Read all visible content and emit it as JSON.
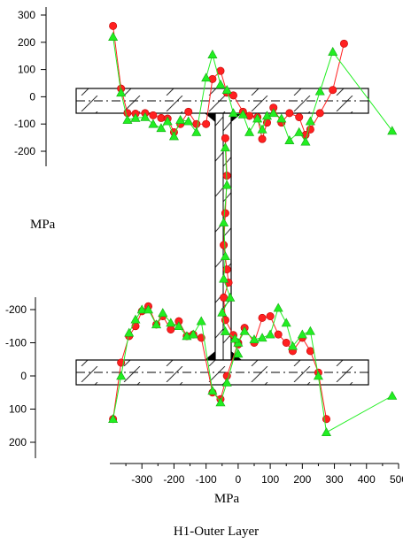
{
  "chart_data": {
    "type": "scatter",
    "title": "H1-Outer Layer",
    "xlabel": "MPa",
    "ylabel": "MPa",
    "x_ticks": [
      "-300",
      "-200",
      "-100",
      "0",
      "100",
      "200",
      "300",
      "400",
      "500"
    ],
    "top_y_ticks": [
      "300",
      "200",
      "100",
      "0",
      "-100",
      "-200"
    ],
    "bottom_y_ticks": [
      "-200",
      "-100",
      "0",
      "100",
      "200"
    ],
    "xlim": [
      -400,
      500
    ],
    "top_ylim": [
      -250,
      320
    ],
    "bottom_ylim": [
      -250,
      240
    ],
    "colors": {
      "red": "#ff2020",
      "green": "#22ee22",
      "hatch": "#333333"
    },
    "series": [
      {
        "marker": "circle",
        "color": "red",
        "top_flange": [
          [
            -390,
            260
          ],
          [
            -365,
            30
          ],
          [
            -345,
            -60
          ],
          [
            -320,
            -62
          ],
          [
            -290,
            -60
          ],
          [
            -265,
            -68
          ],
          [
            -240,
            -78
          ],
          [
            -220,
            -80
          ],
          [
            -200,
            -130
          ],
          [
            -180,
            -100
          ],
          [
            -155,
            -55
          ],
          [
            -130,
            -100
          ],
          [
            -100,
            -100
          ],
          [
            -80,
            65
          ],
          [
            -55,
            95
          ],
          [
            -35,
            15
          ],
          [
            -15,
            5
          ],
          [
            15,
            -55
          ],
          [
            35,
            -70
          ],
          [
            60,
            -75
          ],
          [
            75,
            -155
          ],
          [
            90,
            -95
          ],
          [
            110,
            -40
          ],
          [
            135,
            -95
          ],
          [
            160,
            -60
          ],
          [
            190,
            -75
          ],
          [
            210,
            -140
          ],
          [
            225,
            -120
          ],
          [
            255,
            -60
          ],
          [
            295,
            25
          ],
          [
            330,
            195
          ]
        ],
        "bottom_flange": [
          [
            -390,
            130
          ],
          [
            -365,
            -40
          ],
          [
            -340,
            -120
          ],
          [
            -320,
            -150
          ],
          [
            -300,
            -195
          ],
          [
            -280,
            -210
          ],
          [
            -255,
            -155
          ],
          [
            -235,
            -180
          ],
          [
            -210,
            -140
          ],
          [
            -185,
            -165
          ],
          [
            -160,
            -120
          ],
          [
            -140,
            -125
          ],
          [
            -115,
            -115
          ],
          [
            -80,
            50
          ],
          [
            -55,
            70
          ],
          [
            -35,
            0
          ],
          [
            0,
            -100
          ],
          [
            20,
            -145
          ],
          [
            50,
            -100
          ],
          [
            75,
            -175
          ],
          [
            100,
            -180
          ],
          [
            125,
            -125
          ],
          [
            150,
            -100
          ],
          [
            170,
            -75
          ],
          [
            200,
            -115
          ],
          [
            225,
            -75
          ],
          [
            250,
            -10
          ],
          [
            275,
            130
          ]
        ],
        "web": [
          [
            -40,
            -0.15
          ],
          [
            -35,
            0.05
          ],
          [
            -40,
            0.25
          ],
          [
            -45,
            0.42
          ],
          [
            -35,
            0.55
          ],
          [
            -30,
            0.62
          ],
          [
            -45,
            0.7
          ],
          [
            -40,
            0.82
          ],
          [
            -15,
            0.9
          ],
          [
            0,
            0.95
          ]
        ]
      },
      {
        "marker": "triangle",
        "color": "green",
        "top_flange": [
          [
            -390,
            220
          ],
          [
            -365,
            15
          ],
          [
            -345,
            -85
          ],
          [
            -320,
            -78
          ],
          [
            -290,
            -75
          ],
          [
            -265,
            -100
          ],
          [
            -240,
            -115
          ],
          [
            -220,
            -90
          ],
          [
            -200,
            -145
          ],
          [
            -180,
            -85
          ],
          [
            -155,
            -90
          ],
          [
            -130,
            -130
          ],
          [
            -100,
            70
          ],
          [
            -80,
            155
          ],
          [
            -55,
            45
          ],
          [
            -35,
            25
          ],
          [
            -15,
            -60
          ],
          [
            15,
            -65
          ],
          [
            35,
            -130
          ],
          [
            60,
            -80
          ],
          [
            75,
            -120
          ],
          [
            90,
            -70
          ],
          [
            110,
            -60
          ],
          [
            135,
            -80
          ],
          [
            160,
            -160
          ],
          [
            190,
            -130
          ],
          [
            210,
            -165
          ],
          [
            225,
            -90
          ],
          [
            255,
            20
          ],
          [
            295,
            165
          ],
          [
            480,
            -125
          ]
        ],
        "bottom_flange": [
          [
            -390,
            130
          ],
          [
            -365,
            0
          ],
          [
            -340,
            -130
          ],
          [
            -320,
            -170
          ],
          [
            -300,
            -200
          ],
          [
            -280,
            -200
          ],
          [
            -255,
            -155
          ],
          [
            -235,
            -190
          ],
          [
            -210,
            -160
          ],
          [
            -185,
            -150
          ],
          [
            -160,
            -120
          ],
          [
            -140,
            -125
          ],
          [
            -115,
            -165
          ],
          [
            -80,
            45
          ],
          [
            -55,
            80
          ],
          [
            -35,
            20
          ],
          [
            0,
            -100
          ],
          [
            20,
            -135
          ],
          [
            50,
            -110
          ],
          [
            75,
            -115
          ],
          [
            100,
            -125
          ],
          [
            125,
            -205
          ],
          [
            150,
            -160
          ],
          [
            170,
            -90
          ],
          [
            200,
            -125
          ],
          [
            225,
            -135
          ],
          [
            250,
            0
          ],
          [
            275,
            170
          ],
          [
            480,
            60
          ]
        ],
        "web": [
          [
            -40,
            -0.1
          ],
          [
            -35,
            0.1
          ],
          [
            -45,
            0.3
          ],
          [
            -40,
            0.48
          ],
          [
            -45,
            0.6
          ],
          [
            -25,
            0.7
          ],
          [
            -50,
            0.78
          ],
          [
            -40,
            0.88
          ],
          [
            -10,
            0.92
          ],
          [
            0,
            1.0
          ]
        ]
      }
    ],
    "grid": false,
    "legend": "none"
  }
}
